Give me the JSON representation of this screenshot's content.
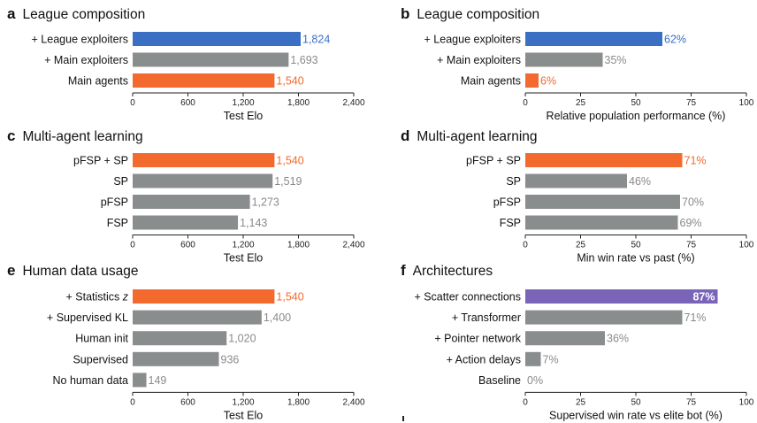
{
  "colors": {
    "blue": "#3b6fc4",
    "orange": "#f26a2e",
    "gray": "#8a8d8e",
    "purple": "#7a64b8",
    "label_gray": "#8a8a8a"
  },
  "chart_data": [
    {
      "id": "a",
      "letter": "a",
      "type": "bar",
      "orientation": "horizontal",
      "title": "League composition",
      "categories": [
        "+ League exploiters",
        "+ Main exploiters",
        "Main agents"
      ],
      "values": [
        1824,
        1693,
        1540
      ],
      "value_labels": [
        "1,824",
        "1,693",
        "1,540"
      ],
      "bar_colors": [
        "blue",
        "gray",
        "orange"
      ],
      "label_colors": [
        "blue",
        "label_gray",
        "orange"
      ],
      "xlabel": "Test Elo",
      "xlim": [
        0,
        2400
      ],
      "xticks": [
        0,
        600,
        1200,
        1800,
        2400
      ],
      "xtick_labels": [
        "0",
        "600",
        "1,200",
        "1,800",
        "2,400"
      ]
    },
    {
      "id": "b",
      "letter": "b",
      "type": "bar",
      "orientation": "horizontal",
      "title": "League composition",
      "categories": [
        "+ League exploiters",
        "+ Main exploiters",
        "Main agents"
      ],
      "values": [
        62,
        35,
        6
      ],
      "value_labels": [
        "62%",
        "35%",
        "6%"
      ],
      "bar_colors": [
        "blue",
        "gray",
        "orange"
      ],
      "label_colors": [
        "blue",
        "label_gray",
        "orange"
      ],
      "xlabel": "Relative population performance (%)",
      "xlim": [
        0,
        100
      ],
      "xticks": [
        0,
        25,
        50,
        75,
        100
      ],
      "xtick_labels": [
        "0",
        "25",
        "50",
        "75",
        "100"
      ]
    },
    {
      "id": "c",
      "letter": "c",
      "type": "bar",
      "orientation": "horizontal",
      "title": "Multi-agent learning",
      "categories": [
        "pFSP + SP",
        "SP",
        "pFSP",
        "FSP"
      ],
      "values": [
        1540,
        1519,
        1273,
        1143
      ],
      "value_labels": [
        "1,540",
        "1,519",
        "1,273",
        "1,143"
      ],
      "bar_colors": [
        "orange",
        "gray",
        "gray",
        "gray"
      ],
      "label_colors": [
        "orange",
        "label_gray",
        "label_gray",
        "label_gray"
      ],
      "xlabel": "Test Elo",
      "xlim": [
        0,
        2400
      ],
      "xticks": [
        0,
        600,
        1200,
        1800,
        2400
      ],
      "xtick_labels": [
        "0",
        "600",
        "1,200",
        "1,800",
        "2,400"
      ]
    },
    {
      "id": "d",
      "letter": "d",
      "type": "bar",
      "orientation": "horizontal",
      "title": "Multi-agent learning",
      "categories": [
        "pFSP + SP",
        "SP",
        "pFSP",
        "FSP"
      ],
      "values": [
        71,
        46,
        70,
        69
      ],
      "value_labels": [
        "71%",
        "46%",
        "70%",
        "69%"
      ],
      "bar_colors": [
        "orange",
        "gray",
        "gray",
        "gray"
      ],
      "label_colors": [
        "orange",
        "label_gray",
        "label_gray",
        "label_gray"
      ],
      "xlabel": "Min win rate vs past (%)",
      "xlim": [
        0,
        100
      ],
      "xticks": [
        0,
        25,
        50,
        75,
        100
      ],
      "xtick_labels": [
        "0",
        "25",
        "50",
        "75",
        "100"
      ]
    },
    {
      "id": "e",
      "letter": "e",
      "type": "bar",
      "orientation": "horizontal",
      "title": "Human data usage",
      "categories": [
        "+ Statistics z",
        "+ Supervised KL",
        "Human init",
        "Supervised",
        "No human data"
      ],
      "values": [
        1540,
        1400,
        1020,
        936,
        149
      ],
      "value_labels": [
        "1,540",
        "1,400",
        "1,020",
        "936",
        "149"
      ],
      "bar_colors": [
        "orange",
        "gray",
        "gray",
        "gray",
        "gray"
      ],
      "label_colors": [
        "orange",
        "label_gray",
        "label_gray",
        "label_gray",
        "label_gray"
      ],
      "xlabel": "Test Elo",
      "xlim": [
        0,
        2400
      ],
      "xticks": [
        0,
        600,
        1200,
        1800,
        2400
      ],
      "xtick_labels": [
        "0",
        "600",
        "1,200",
        "1,800",
        "2,400"
      ]
    },
    {
      "id": "f",
      "letter": "f",
      "type": "bar",
      "orientation": "horizontal",
      "title": "Architectures",
      "categories": [
        "+ Scatter connections",
        "+ Transformer",
        "+ Pointer network",
        "+ Action delays",
        "Baseline"
      ],
      "values": [
        87,
        71,
        36,
        7,
        0
      ],
      "value_labels": [
        "87%",
        "71%",
        "36%",
        "7%",
        "0%"
      ],
      "bar_colors": [
        "purple",
        "gray",
        "gray",
        "gray",
        "gray"
      ],
      "label_colors": [
        "inside_white",
        "label_gray",
        "label_gray",
        "label_gray",
        "label_gray"
      ],
      "xlabel": "Supervised win rate vs elite bot (%)",
      "xlim": [
        0,
        100
      ],
      "xticks": [
        0,
        25,
        50,
        75,
        100
      ],
      "xtick_labels": [
        "0",
        "25",
        "50",
        "75",
        "100"
      ]
    }
  ]
}
